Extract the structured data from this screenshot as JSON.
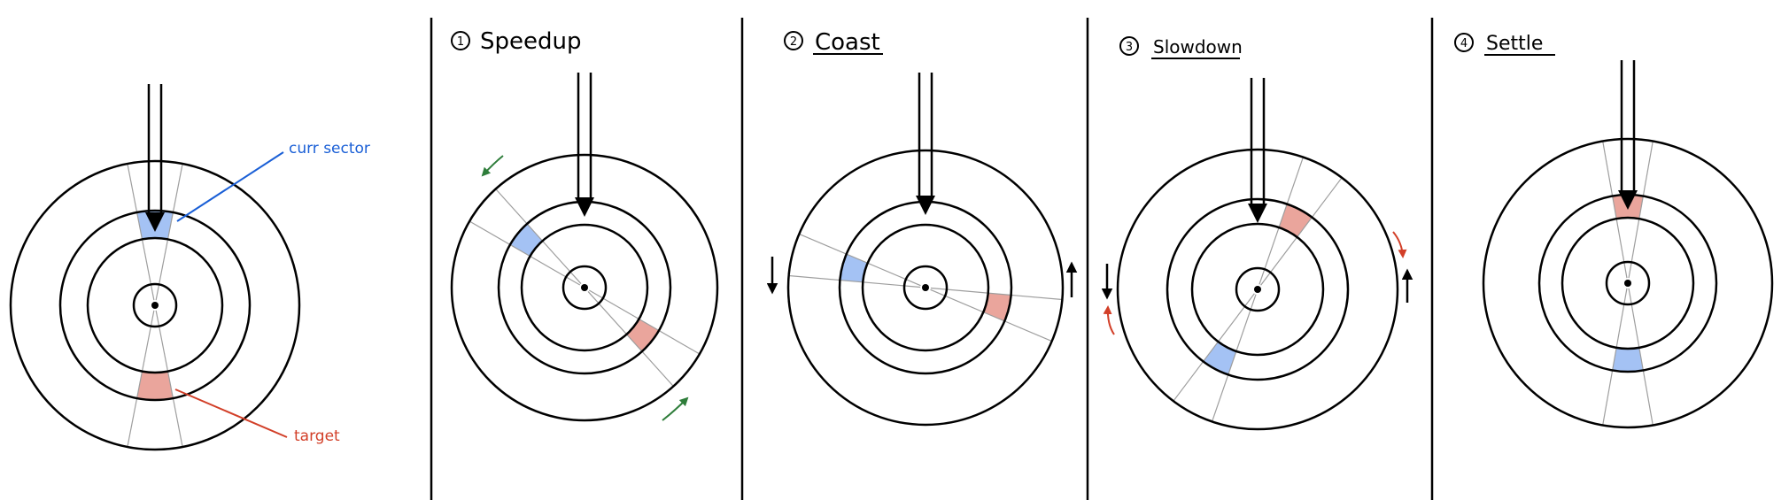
{
  "diagram": {
    "overview": {
      "curr_label": "curr sector",
      "target_label": "target"
    },
    "panels": [
      {
        "number": "1",
        "title": "Speedup",
        "underline": false
      },
      {
        "number": "2",
        "title": "Coast",
        "underline": true
      },
      {
        "number": "3",
        "title": "Slowdown",
        "underline": true
      },
      {
        "number": "4",
        "title": "Settle",
        "underline": true
      }
    ]
  },
  "colors": {
    "curr_sector": "#a4c2f4",
    "target_sector": "#eaa59c",
    "curr_label": "#1a5fd6",
    "target_label": "#d23f28",
    "speed_arrow": "#2e7d3a",
    "slow_arrow": "#d23f28",
    "ink": "#000000",
    "guide": "#9e9e9e"
  }
}
